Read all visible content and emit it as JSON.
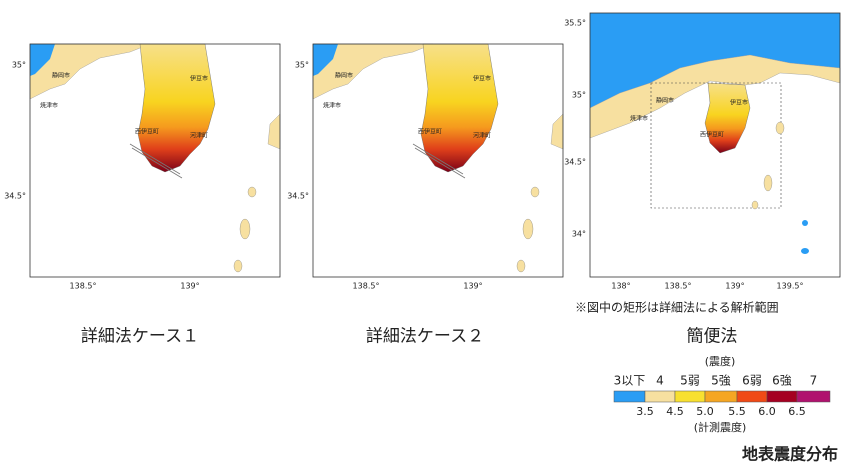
{
  "panels": [
    {
      "caption": "詳細法ケース１",
      "y_ticks": [
        "35°",
        "34.5°"
      ],
      "x_ticks": [
        "138.5°",
        "139°"
      ],
      "place_labels": [
        "静岡市",
        "焼津市",
        "伊豆市",
        "西伊豆町",
        "河津町"
      ]
    },
    {
      "caption": "詳細法ケース２",
      "y_ticks": [
        "35°",
        "34.5°"
      ],
      "x_ticks": [
        "138.5°",
        "139°"
      ],
      "place_labels": [
        "静岡市",
        "焼津市",
        "伊豆市",
        "西伊豆町",
        "河津町"
      ]
    },
    {
      "caption": "簡便法",
      "y_ticks": [
        "35.5°",
        "35°",
        "34.5°",
        "34°"
      ],
      "x_ticks": [
        "138°",
        "138.5°",
        "139°",
        "139.5°"
      ],
      "place_labels": [
        "静岡市",
        "焼津市",
        "伊豆市",
        "西伊豆町"
      ]
    }
  ],
  "note": "※図中の矩形は詳細法による解析範囲",
  "legend": {
    "intensity_title": "(震度)",
    "classes": [
      {
        "label": "3以下",
        "color": "#2a9df4"
      },
      {
        "label": "4",
        "color": "#f7e0a0"
      },
      {
        "label": "5弱",
        "color": "#f8e030"
      },
      {
        "label": "5強",
        "color": "#f5a623"
      },
      {
        "label": "6弱",
        "color": "#f04a16"
      },
      {
        "label": "6強",
        "color": "#a50021"
      },
      {
        "label": "7",
        "color": "#b0126e"
      }
    ],
    "boundaries": [
      "3.5",
      "4.5",
      "5.0",
      "5.5",
      "6.0",
      "6.5"
    ],
    "measured_title": "(計測震度)"
  },
  "title": "地表震度分布"
}
